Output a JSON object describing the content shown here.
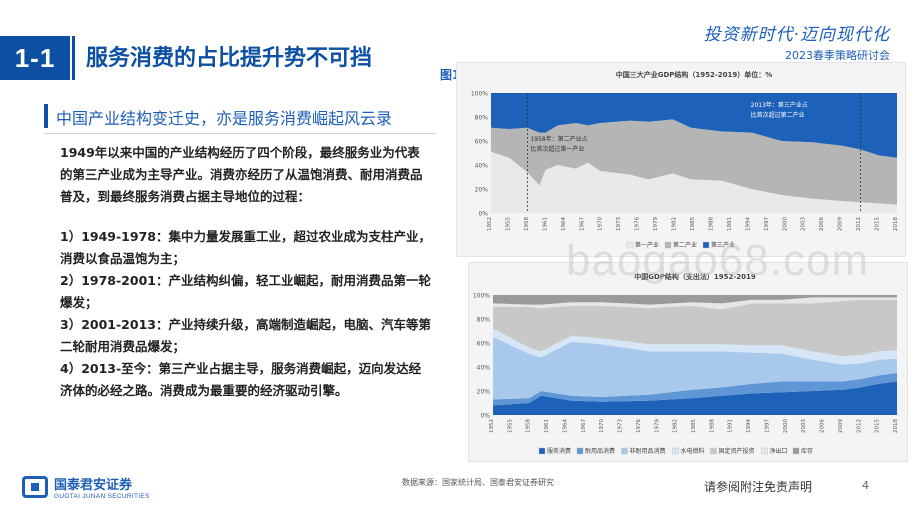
{
  "header": {
    "section_number": "1-1",
    "title": "服务消费的占比提升势不可挡",
    "brand_slogan": "投资新时代·迈向现代化",
    "brand_subtitle": "2023春季策略研讨会"
  },
  "subtitle": "中国产业结构变迁史，亦是服务消费崛起风云录",
  "body": {
    "intro": "1949年以来中国的产业结构经历了四个阶段，最终服务业为代表的第三产业成为主导产业。消费亦经历了从温饱消费、耐用消费品普及，到最终服务消费占据主导地位的过程：",
    "stages": [
      "1）1949-1978：集中力量发展重工业，超过农业成为支柱产业，消费以食品温饱为主；",
      "2）1978-2001：产业结构纠偏，轻工业崛起，耐用消费品第一轮爆发；",
      "3）2001-2013：产业持续升级，高端制造崛起，电脑、汽车等第二轮耐用消费品爆发；",
      "4）2013-至今：第三产业占据主导，服务消费崛起，迈向发达经济体的必经之路。消费成为最重要的经济驱动引擎。"
    ]
  },
  "figure_label": "图1",
  "chart_data": [
    {
      "type": "area",
      "title": "中国三大产业GDP结构（1952-2019）单位：%",
      "ylim": [
        0,
        100
      ],
      "y_ticks": [
        "100%",
        "80%",
        "60%",
        "40%",
        "20%",
        "0%"
      ],
      "x_tick_labels": [
        "1952",
        "1955",
        "1958",
        "1961",
        "1964",
        "1967",
        "1970",
        "1973",
        "1976",
        "1979",
        "1982",
        "1985",
        "1988",
        "1991",
        "1994",
        "1997",
        "2000",
        "2003",
        "2006",
        "2009",
        "2012",
        "2015",
        "2018"
      ],
      "annotations": [
        "1958年：第二产业占比首次超过第一产业",
        "2013年：第三产业占比首次超过第二产业"
      ],
      "legend": [
        "第一产业",
        "第二产业",
        "第三产业"
      ],
      "colors": [
        "#e9e9e9",
        "#b5b5b5",
        "#1d61b8"
      ],
      "x": [
        1952,
        1955,
        1958,
        1960,
        1961,
        1963,
        1966,
        1968,
        1970,
        1975,
        1978,
        1982,
        1985,
        1990,
        1995,
        2000,
        2005,
        2010,
        2013,
        2016,
        2019
      ],
      "series": [
        {
          "name": "第一产业",
          "values": [
            51,
            46,
            34,
            23,
            36,
            40,
            37,
            42,
            35,
            32,
            28,
            33,
            28,
            27,
            20,
            15,
            12,
            10,
            9,
            8,
            7
          ]
        },
        {
          "name": "第二产业",
          "values": [
            20,
            24,
            37,
            44,
            31,
            33,
            38,
            31,
            40,
            45,
            48,
            45,
            43,
            41,
            47,
            45,
            47,
            46,
            44,
            40,
            39
          ]
        },
        {
          "name": "第三产业",
          "values": [
            29,
            30,
            29,
            33,
            33,
            27,
            25,
            27,
            25,
            23,
            24,
            22,
            29,
            32,
            33,
            40,
            41,
            44,
            47,
            52,
            54
          ]
        }
      ]
    },
    {
      "type": "area",
      "title": "中国GDP结构（支出法）1952-2019",
      "ylim": [
        0,
        100
      ],
      "y_ticks": [
        "100%",
        "80%",
        "60%",
        "40%",
        "20%",
        "0%"
      ],
      "x_tick_labels": [
        "1952",
        "1955",
        "1958",
        "1961",
        "1964",
        "1967",
        "1970",
        "1973",
        "1976",
        "1979",
        "1982",
        "1985",
        "1988",
        "1991",
        "1994",
        "1997",
        "2000",
        "2003",
        "2006",
        "2009",
        "2012",
        "2015",
        "2018"
      ],
      "legend": [
        "服务消费",
        "耐用品消费",
        "非耐用品消费",
        "水电燃料",
        "固定资产投资",
        "净出口",
        "库存"
      ],
      "colors": [
        "#1d61b8",
        "#5e96d6",
        "#a8c8ec",
        "#d6e6f6",
        "#c8c8c8",
        "#e6e6e6",
        "#9a9a9a"
      ],
      "x": [
        1952,
        1958,
        1960,
        1965,
        1970,
        1978,
        1985,
        1990,
        1995,
        2000,
        2005,
        2010,
        2013,
        2016,
        2019
      ],
      "series": [
        {
          "name": "服务消费",
          "values": [
            8,
            10,
            16,
            12,
            11,
            12,
            14,
            16,
            18,
            19,
            20,
            21,
            23,
            26,
            28
          ]
        },
        {
          "name": "耐用品消费",
          "values": [
            5,
            4,
            4,
            4,
            4,
            5,
            7,
            7,
            8,
            9,
            8,
            7,
            7,
            7,
            7
          ]
        },
        {
          "name": "非耐用品消费",
          "values": [
            52,
            37,
            28,
            45,
            44,
            36,
            32,
            30,
            26,
            23,
            18,
            14,
            13,
            13,
            12
          ]
        },
        {
          "name": "水电燃料",
          "values": [
            7,
            5,
            5,
            5,
            5,
            6,
            6,
            6,
            6,
            7,
            7,
            7,
            7,
            7,
            7
          ]
        },
        {
          "name": "固定资产投资",
          "values": [
            18,
            34,
            36,
            25,
            27,
            30,
            32,
            29,
            35,
            35,
            40,
            46,
            46,
            43,
            42
          ]
        },
        {
          "name": "净出口",
          "values": [
            3,
            2,
            3,
            3,
            3,
            3,
            3,
            5,
            3,
            3,
            5,
            3,
            2,
            2,
            2
          ]
        },
        {
          "name": "库存",
          "values": [
            7,
            8,
            8,
            6,
            6,
            8,
            6,
            7,
            4,
            4,
            2,
            2,
            2,
            2,
            2
          ]
        }
      ]
    }
  ],
  "footer": {
    "logo_cn": "国泰君安证券",
    "logo_en": "GUOTAI JUNAN SECURITIES",
    "source": "数据来源：国家统计局、国泰君安证券研究",
    "disclaimer": "请参阅附注免责声明",
    "page_number": "4"
  },
  "watermark": "baogao68.com"
}
